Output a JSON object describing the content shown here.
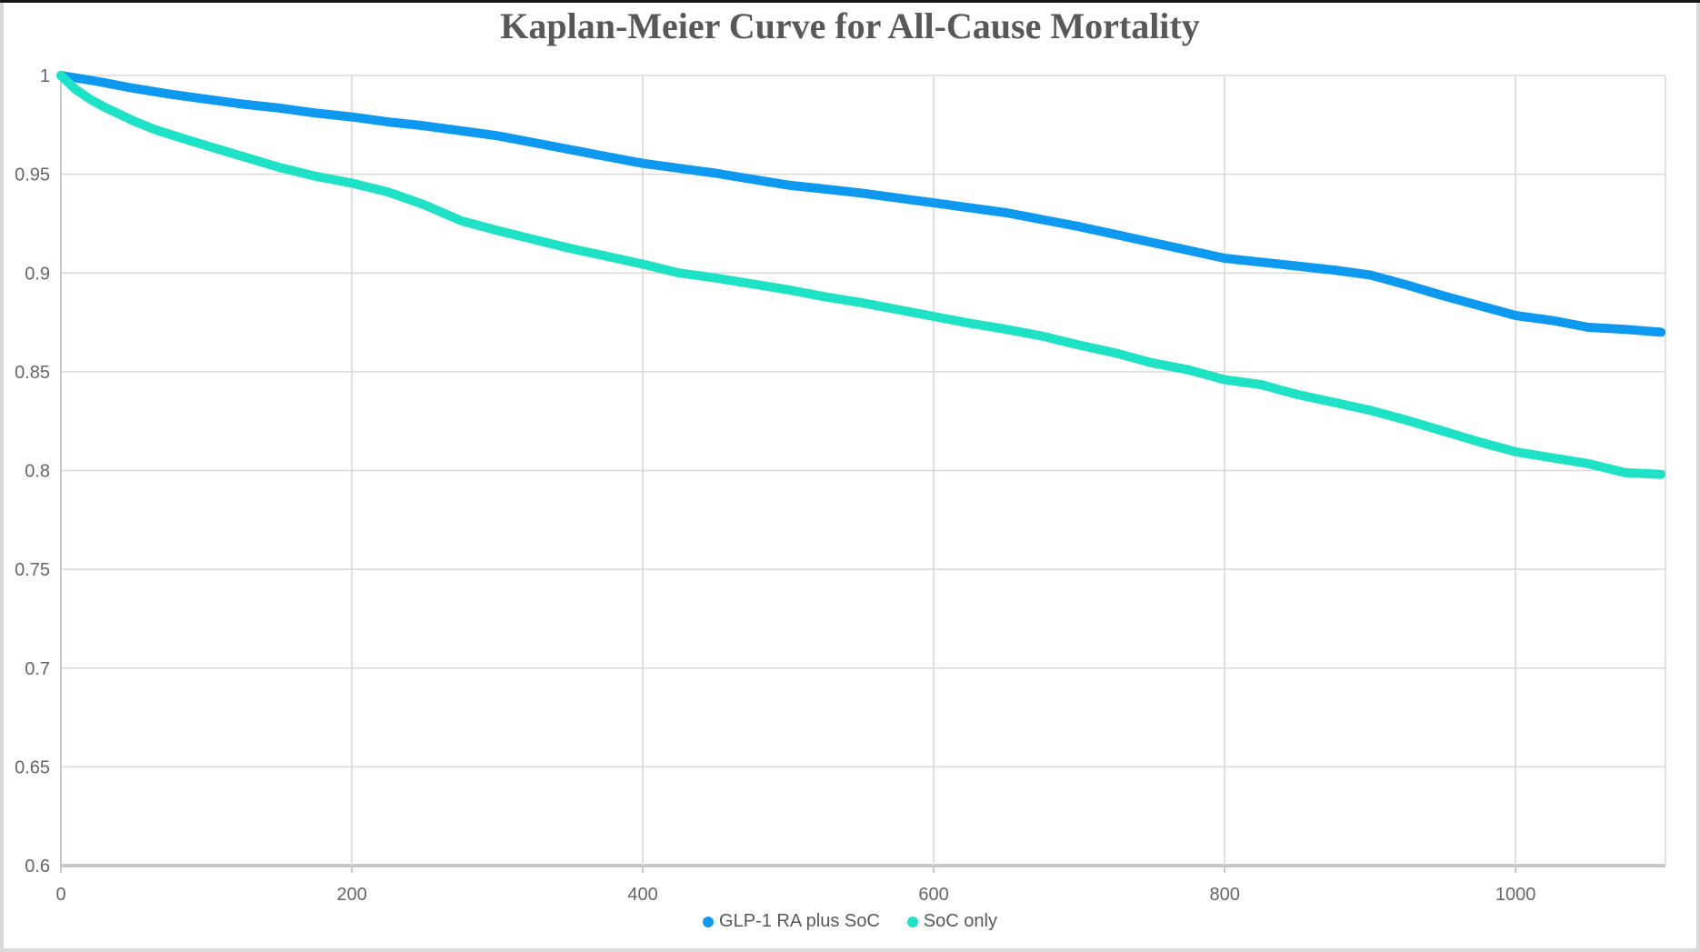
{
  "title": "Kaplan-Meier Curve for All-Cause Mortality",
  "chart_data": {
    "type": "line",
    "title": "Kaplan-Meier Curve for All-Cause Mortality",
    "xlabel": "",
    "ylabel": "",
    "xlim": [
      0,
      1103
    ],
    "ylim": [
      0.6,
      1.0
    ],
    "grid": true,
    "legend_position": "bottom-center",
    "x_ticks": {
      "values": [
        0,
        200,
        400,
        600,
        800,
        1000
      ],
      "labels": [
        "0",
        "200",
        "400",
        "600",
        "800",
        "1000"
      ]
    },
    "y_ticks": {
      "values": [
        1,
        0.95,
        0.9,
        0.85,
        0.8,
        0.75,
        0.7,
        0.65,
        0.6
      ],
      "labels": [
        "1",
        "0.95",
        "0.9",
        "0.85",
        "0.8",
        "0.75",
        "0.7",
        "0.65",
        "0.6"
      ]
    },
    "series": [
      {
        "name": "GLP-1 RA plus SoC",
        "color": "#0d99f0",
        "x": [
          0,
          25,
          50,
          75,
          100,
          125,
          150,
          175,
          200,
          225,
          250,
          275,
          300,
          325,
          350,
          375,
          400,
          425,
          450,
          475,
          500,
          525,
          550,
          575,
          600,
          625,
          650,
          675,
          700,
          725,
          750,
          775,
          800,
          825,
          850,
          875,
          900,
          925,
          950,
          975,
          1000,
          1025,
          1050,
          1075,
          1100
        ],
        "y": [
          1.0,
          0.997,
          0.9935,
          0.9905,
          0.988,
          0.9855,
          0.9835,
          0.981,
          0.979,
          0.9765,
          0.9745,
          0.972,
          0.9695,
          0.966,
          0.9625,
          0.959,
          0.9555,
          0.953,
          0.9505,
          0.9475,
          0.9445,
          0.9425,
          0.9405,
          0.938,
          0.9355,
          0.933,
          0.9305,
          0.927,
          0.9235,
          0.9195,
          0.9155,
          0.9115,
          0.9075,
          0.9055,
          0.9035,
          0.9015,
          0.899,
          0.894,
          0.8885,
          0.8835,
          0.8785,
          0.876,
          0.8725,
          0.8715,
          0.87
        ]
      },
      {
        "name": "SoC only",
        "color": "#1de2c6",
        "x": [
          0,
          5,
          10,
          15,
          20,
          30,
          40,
          50,
          65,
          80,
          100,
          125,
          150,
          175,
          200,
          225,
          250,
          275,
          300,
          325,
          350,
          375,
          400,
          425,
          450,
          475,
          500,
          525,
          550,
          575,
          600,
          625,
          650,
          675,
          700,
          725,
          750,
          775,
          800,
          825,
          850,
          875,
          900,
          925,
          950,
          975,
          1000,
          1025,
          1050,
          1075,
          1100
        ],
        "y": [
          1.0,
          0.9965,
          0.993,
          0.9905,
          0.988,
          0.984,
          0.9805,
          0.977,
          0.9725,
          0.969,
          0.9645,
          0.959,
          0.9535,
          0.949,
          0.9455,
          0.941,
          0.9345,
          0.9265,
          0.9215,
          0.917,
          0.9125,
          0.9085,
          0.9045,
          0.9,
          0.8975,
          0.8945,
          0.8915,
          0.888,
          0.885,
          0.8815,
          0.878,
          0.8745,
          0.8715,
          0.868,
          0.8635,
          0.8595,
          0.8545,
          0.851,
          0.846,
          0.8435,
          0.8385,
          0.8345,
          0.8305,
          0.8255,
          0.82,
          0.8145,
          0.8095,
          0.8065,
          0.8035,
          0.799,
          0.798
        ]
      }
    ],
    "styles": {
      "grid_color": "#d9d9d9",
      "x_axis_line_color": "#c8c8c8",
      "y_axis_line_color": "#c9c9c9",
      "tick_mark_color": "#c0c0c0",
      "tick_label_color": "#666666",
      "title_color": "#58585a",
      "legend_text_color": "#58585a",
      "background": "#ffffff"
    }
  }
}
